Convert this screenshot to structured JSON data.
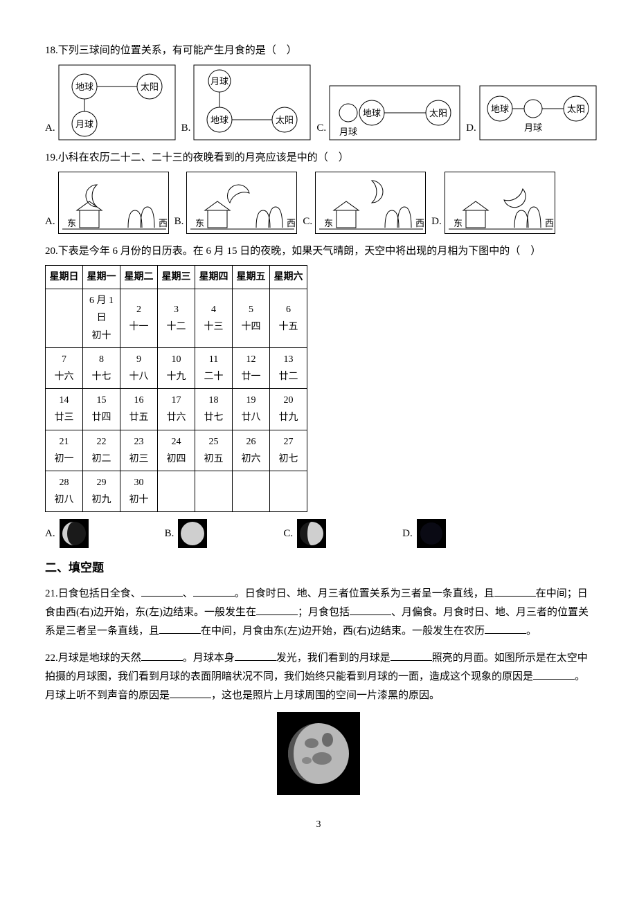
{
  "q18": {
    "text": "18.下列三球间的位置关系，有可能产生月食的是（　）",
    "labels": {
      "earth": "地球",
      "sun": "太阳",
      "moon": "月球"
    },
    "diagram_colors": {
      "stroke": "#000000",
      "bg": "#ffffff",
      "line_w": 1
    },
    "options": [
      "A.",
      "B.",
      "C.",
      "D."
    ]
  },
  "q19": {
    "text": "19.小科在农历二十二、二十三的夜晚看到的月亮应该是中的（　）",
    "east": "东",
    "west": "西",
    "options": [
      "A.",
      "B.",
      "C.",
      "D."
    ],
    "colors": {
      "stroke": "#000000",
      "fill_white": "#ffffff"
    }
  },
  "q20": {
    "text": "20.下表是今年 6 月份的日历表。在 6 月 15 日的夜晚，如果天气晴朗，天空中将出现的月相为下图中的（　）",
    "headers": [
      "星期日",
      "星期一",
      "星期二",
      "星期三",
      "星期四",
      "星期五",
      "星期六"
    ],
    "rows": [
      [
        {
          "top": "",
          "bot": ""
        },
        {
          "top": "6 月 1 日",
          "bot": "初十"
        },
        {
          "top": "2",
          "bot": "十一"
        },
        {
          "top": "3",
          "bot": "十二"
        },
        {
          "top": "4",
          "bot": "十三"
        },
        {
          "top": "5",
          "bot": "十四"
        },
        {
          "top": "6",
          "bot": "十五"
        }
      ],
      [
        {
          "top": "7",
          "bot": "十六"
        },
        {
          "top": "8",
          "bot": "十七"
        },
        {
          "top": "9",
          "bot": "十八"
        },
        {
          "top": "10",
          "bot": "十九"
        },
        {
          "top": "11",
          "bot": "二十"
        },
        {
          "top": "12",
          "bot": "廿一"
        },
        {
          "top": "13",
          "bot": "廿二"
        }
      ],
      [
        {
          "top": "14",
          "bot": "廿三"
        },
        {
          "top": "15",
          "bot": "廿四"
        },
        {
          "top": "16",
          "bot": "廿五"
        },
        {
          "top": "17",
          "bot": "廿六"
        },
        {
          "top": "18",
          "bot": "廿七"
        },
        {
          "top": "19",
          "bot": "廿八"
        },
        {
          "top": "20",
          "bot": "廿九"
        }
      ],
      [
        {
          "top": "21",
          "bot": "初一"
        },
        {
          "top": "22",
          "bot": "初二"
        },
        {
          "top": "23",
          "bot": "初三"
        },
        {
          "top": "24",
          "bot": "初四"
        },
        {
          "top": "25",
          "bot": "初五"
        },
        {
          "top": "26",
          "bot": "初六"
        },
        {
          "top": "27",
          "bot": "初七"
        }
      ],
      [
        {
          "top": "28",
          "bot": "初八"
        },
        {
          "top": "29",
          "bot": "初九"
        },
        {
          "top": "30",
          "bot": "初十"
        },
        {
          "top": "",
          "bot": ""
        },
        {
          "top": "",
          "bot": ""
        },
        {
          "top": "",
          "bot": ""
        },
        {
          "top": "",
          "bot": ""
        }
      ]
    ],
    "options": [
      "A.",
      "B.",
      "C.",
      "D."
    ],
    "moon_colors": {
      "moon_light": "#cfcfcf",
      "moon_dark": "#1a1a1a",
      "bg": "#000000",
      "new_moon": "#0a0a14"
    },
    "moon_phases": [
      "waxing-crescent-left",
      "full",
      "first-quarter",
      "new"
    ]
  },
  "section2_title": "二、填空题",
  "q21": {
    "parts": [
      "21.日食包括日全食、",
      "blank",
      "、",
      "blank",
      "。日食时日、地、月三者位置关系为三者呈一条直线，且",
      "blank",
      "在中间；日食由西(右)边开始，东(左)边结束。一般发生在",
      "blank",
      "；月食包括",
      "blank",
      "、月偏食。月食时日、地、月三者的位置关系是三者呈一条直线，且",
      "blank",
      "在中间，月食由东(左)边开始，西(右)边结束。一般发生在农历",
      "blank",
      "。"
    ]
  },
  "q22": {
    "parts": [
      "22.月球是地球的天然",
      "blank",
      "。月球本身",
      "blank",
      "发光，我们看到的月球是",
      "blank",
      "照亮的月面。如图所示是在太空中拍摄的月球图，我们看到月球的表面阴暗状况不同，我们始终只能看到月球的一面，造成这个现象的原因是",
      "blank",
      "。月球上听不到声音的原因是",
      "blank",
      "，这也是照片上月球周围的空间一片漆黑的原因。"
    ],
    "photo_colors": {
      "bg": "#000000",
      "moon": "#b8b8b8"
    }
  },
  "page_number": "3"
}
